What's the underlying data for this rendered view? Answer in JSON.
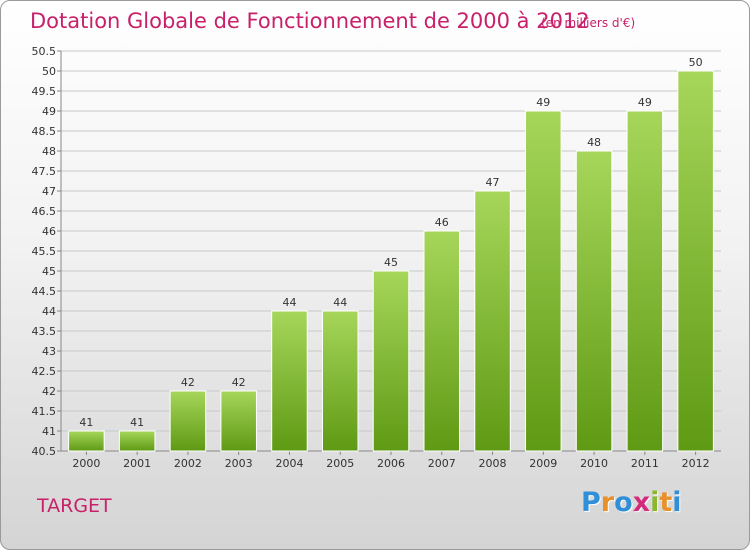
{
  "title": "Dotation Globale de Fonctionnement de 2000 à 2012",
  "subtitle": "(en milliers d'€)",
  "city": "TARGET",
  "logo": {
    "letters": [
      "P",
      "r",
      "o",
      "x",
      "i",
      "t",
      "i"
    ],
    "colors": [
      "#2f8fd8",
      "#e8902a",
      "#2f8fd8",
      "#d42a7a",
      "#8ab82a",
      "#e8902a",
      "#2f8fd8"
    ]
  },
  "colors": {
    "title": "#c8206a",
    "bar_top": "#a6d65a",
    "bar_bottom": "#5f9a14",
    "grid": "#c8c8c8"
  },
  "chart_data": {
    "type": "bar",
    "title": "Dotation Globale de Fonctionnement de 2000 à 2012",
    "subtitle": "(en milliers d'€)",
    "xlabel": "",
    "ylabel": "",
    "ylim": [
      40.5,
      50.5
    ],
    "ytick_step": 0.5,
    "yticks": [
      "40.5",
      "41",
      "41.5",
      "42",
      "42.5",
      "43",
      "43.5",
      "44",
      "44.5",
      "45",
      "45.5",
      "46",
      "46.5",
      "47",
      "47.5",
      "48",
      "48.5",
      "49",
      "49.5",
      "50",
      "50.5"
    ],
    "grid": true,
    "categories": [
      "2000",
      "2001",
      "2002",
      "2003",
      "2004",
      "2005",
      "2006",
      "2007",
      "2008",
      "2009",
      "2010",
      "2011",
      "2012"
    ],
    "values": [
      41,
      41,
      42,
      42,
      44,
      44,
      45,
      46,
      47,
      49,
      48,
      49,
      50
    ],
    "labels": [
      "41",
      "41",
      "42",
      "42",
      "44",
      "44",
      "45",
      "46",
      "47",
      "49",
      "48",
      "49",
      "50"
    ]
  }
}
